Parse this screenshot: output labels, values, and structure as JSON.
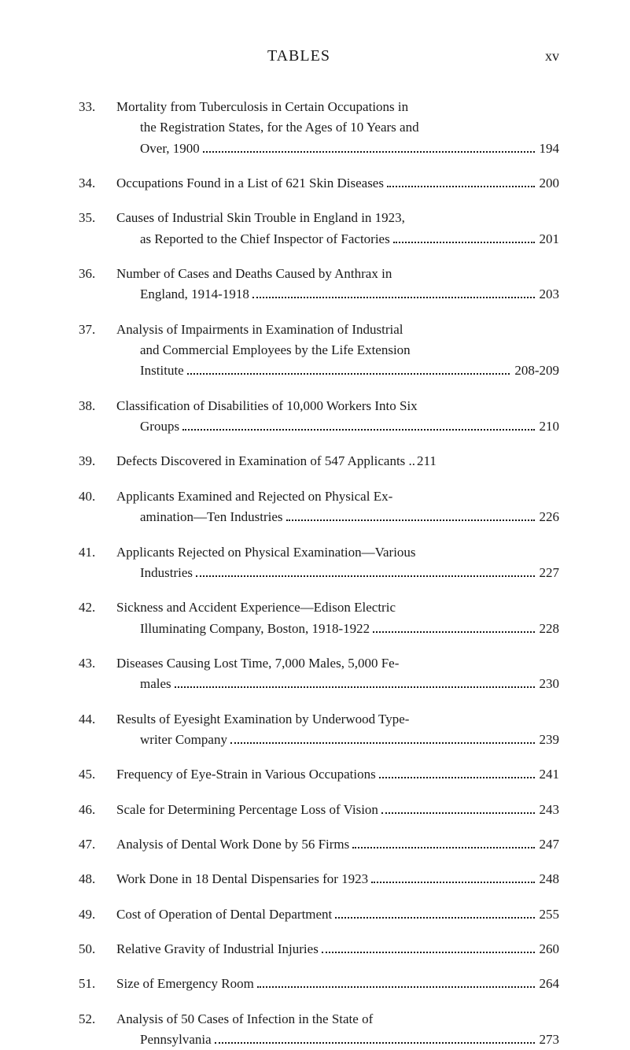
{
  "header": {
    "title": "TABLES",
    "pageNumber": "xv"
  },
  "entries": [
    {
      "num": "33.",
      "lines": [
        {
          "text": "Mortality from Tuberculosis in Certain Occupations in",
          "indent": false,
          "hasDots": false,
          "page": ""
        },
        {
          "text": "the Registration States, for the Ages of 10 Years and",
          "indent": true,
          "hasDots": false,
          "page": ""
        },
        {
          "text": "Over, 1900",
          "indent": true,
          "hasDots": true,
          "page": "194"
        }
      ]
    },
    {
      "num": "34.",
      "lines": [
        {
          "text": "Occupations Found in a List of 621 Skin Diseases",
          "indent": false,
          "hasDots": true,
          "page": "200"
        }
      ]
    },
    {
      "num": "35.",
      "lines": [
        {
          "text": "Causes of Industrial Skin Trouble in England in 1923,",
          "indent": false,
          "hasDots": false,
          "page": ""
        },
        {
          "text": "as Reported to the Chief Inspector of Factories",
          "indent": true,
          "hasDots": true,
          "page": "201"
        }
      ]
    },
    {
      "num": "36.",
      "lines": [
        {
          "text": "Number of Cases and Deaths Caused by Anthrax in",
          "indent": false,
          "hasDots": false,
          "page": ""
        },
        {
          "text": "England, 1914-1918",
          "indent": true,
          "hasDots": true,
          "page": "203"
        }
      ]
    },
    {
      "num": "37.",
      "lines": [
        {
          "text": "Analysis of Impairments in Examination of Industrial",
          "indent": false,
          "hasDots": false,
          "page": ""
        },
        {
          "text": "and Commercial Employees by the Life Extension",
          "indent": true,
          "hasDots": false,
          "page": ""
        },
        {
          "text": "Institute",
          "indent": true,
          "hasDots": true,
          "page": "208-209"
        }
      ]
    },
    {
      "num": "38.",
      "lines": [
        {
          "text": "Classification of Disabilities of 10,000 Workers Into Six",
          "indent": false,
          "hasDots": false,
          "page": ""
        },
        {
          "text": "Groups",
          "indent": true,
          "hasDots": true,
          "page": "210"
        }
      ]
    },
    {
      "num": "39.",
      "lines": [
        {
          "text": "Defects Discovered in Examination of 547 Applicants ..",
          "indent": false,
          "hasDots": false,
          "page": " 211"
        }
      ]
    },
    {
      "num": "40.",
      "lines": [
        {
          "text": "Applicants Examined and Rejected on Physical Ex-",
          "indent": false,
          "hasDots": false,
          "page": ""
        },
        {
          "text": "amination—Ten Industries",
          "indent": true,
          "hasDots": true,
          "page": "226"
        }
      ]
    },
    {
      "num": "41.",
      "lines": [
        {
          "text": "Applicants Rejected on Physical Examination—Various",
          "indent": false,
          "hasDots": false,
          "page": ""
        },
        {
          "text": "Industries",
          "indent": true,
          "hasDots": true,
          "page": "227"
        }
      ]
    },
    {
      "num": "42.",
      "lines": [
        {
          "text": "Sickness and Accident Experience—Edison Electric",
          "indent": false,
          "hasDots": false,
          "page": ""
        },
        {
          "text": "Illuminating Company, Boston, 1918-1922",
          "indent": true,
          "hasDots": true,
          "page": "228"
        }
      ]
    },
    {
      "num": "43.",
      "lines": [
        {
          "text": "Diseases Causing Lost Time, 7,000 Males, 5,000 Fe-",
          "indent": false,
          "hasDots": false,
          "page": ""
        },
        {
          "text": "males",
          "indent": true,
          "hasDots": true,
          "page": "230"
        }
      ]
    },
    {
      "num": "44.",
      "lines": [
        {
          "text": "Results of Eyesight Examination by Underwood Type-",
          "indent": false,
          "hasDots": false,
          "page": ""
        },
        {
          "text": "writer Company",
          "indent": true,
          "hasDots": true,
          "page": "239"
        }
      ]
    },
    {
      "num": "45.",
      "lines": [
        {
          "text": "Frequency of Eye-Strain in Various Occupations",
          "indent": false,
          "hasDots": true,
          "page": "241"
        }
      ]
    },
    {
      "num": "46.",
      "lines": [
        {
          "text": "Scale for Determining Percentage Loss of Vision",
          "indent": false,
          "hasDots": true,
          "page": "243"
        }
      ]
    },
    {
      "num": "47.",
      "lines": [
        {
          "text": "Analysis of Dental Work Done by 56 Firms",
          "indent": false,
          "hasDots": true,
          "page": "247"
        }
      ]
    },
    {
      "num": "48.",
      "lines": [
        {
          "text": "Work Done in 18 Dental Dispensaries for 1923",
          "indent": false,
          "hasDots": true,
          "page": "248"
        }
      ]
    },
    {
      "num": "49.",
      "lines": [
        {
          "text": "Cost of Operation of Dental Department",
          "indent": false,
          "hasDots": true,
          "page": "255"
        }
      ]
    },
    {
      "num": "50.",
      "lines": [
        {
          "text": "Relative Gravity of Industrial Injuries",
          "indent": false,
          "hasDots": true,
          "page": "260"
        }
      ]
    },
    {
      "num": "51.",
      "lines": [
        {
          "text": "Size of Emergency Room",
          "indent": false,
          "hasDots": true,
          "page": "264"
        }
      ]
    },
    {
      "num": "52.",
      "lines": [
        {
          "text": "Analysis of 50 Cases of Infection in the State of",
          "indent": false,
          "hasDots": false,
          "page": ""
        },
        {
          "text": "Pennsylvania",
          "indent": true,
          "hasDots": true,
          "page": "273"
        }
      ]
    }
  ]
}
